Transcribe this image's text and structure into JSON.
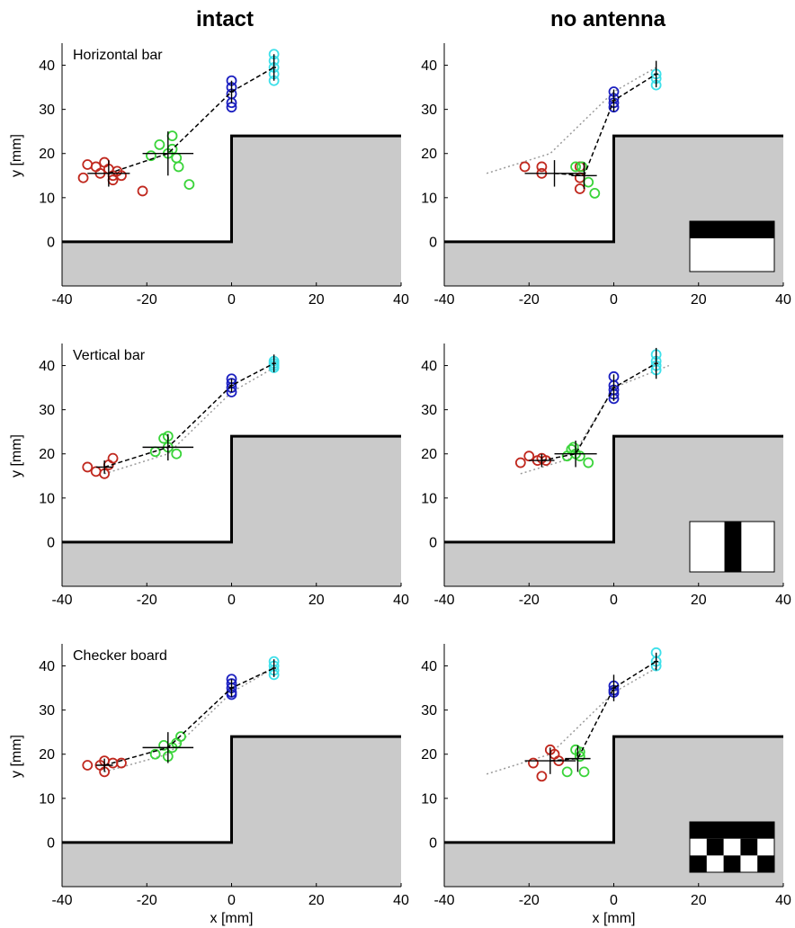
{
  "columns": [
    "intact",
    "no antenna"
  ],
  "colors": {
    "red": "#c0281e",
    "green": "#3ad43a",
    "blue": "#1c20c0",
    "cyan": "#3ee0ea",
    "obstacle": "#cacaca",
    "dashed_mean": "#000000",
    "dotted_ref": "#9a9a9a"
  },
  "chart_data": [
    {
      "type": "scatter",
      "panel": "horizontal-intact",
      "title": "Horizontal bar",
      "xlabel": "",
      "ylabel": "y [mm]",
      "xlim": [
        -40,
        40
      ],
      "ylim": [
        -10,
        45
      ],
      "xticks": [
        "-40",
        "-20",
        "0",
        "20",
        "40"
      ],
      "yticks": [
        "0",
        "10",
        "20",
        "30",
        "40"
      ],
      "obstacle": [
        [
          -40,
          0
        ],
        [
          0,
          0
        ],
        [
          0,
          24
        ],
        [
          40,
          24
        ]
      ],
      "pattern": "",
      "series": [
        {
          "color": "red",
          "points": [
            [
              -35,
              14.5
            ],
            [
              -34,
              17.5
            ],
            [
              -32,
              17
            ],
            [
              -31,
              15.5
            ],
            [
              -30,
              18
            ],
            [
              -29,
              16.5
            ],
            [
              -28,
              15
            ],
            [
              -28,
              14
            ],
            [
              -27,
              16
            ],
            [
              -26,
              15
            ],
            [
              -21,
              11.5
            ]
          ]
        },
        {
          "color": "green",
          "points": [
            [
              -19,
              19.5
            ],
            [
              -17,
              22
            ],
            [
              -15,
              20
            ],
            [
              -14,
              24
            ],
            [
              -14,
              21
            ],
            [
              -13,
              19
            ],
            [
              -12.5,
              17
            ],
            [
              -10,
              13
            ]
          ]
        },
        {
          "color": "blue",
          "points": [
            [
              0,
              36.5
            ],
            [
              0,
              35
            ],
            [
              0,
              33.5
            ],
            [
              0,
              31.5
            ],
            [
              0,
              30.5
            ]
          ]
        },
        {
          "color": "cyan",
          "points": [
            [
              10,
              42.5
            ],
            [
              10,
              41
            ],
            [
              10,
              39.5
            ],
            [
              10,
              38
            ],
            [
              10,
              36.5
            ]
          ]
        }
      ],
      "mean_path": [
        [
          -29,
          15.5
        ],
        [
          -15,
          20
        ],
        [
          0,
          34
        ],
        [
          10,
          39.5
        ]
      ],
      "error_bars": [
        [
          -29,
          15.5,
          5,
          3
        ],
        [
          -15,
          20,
          6,
          5
        ],
        [
          0,
          34,
          0.5,
          2.5
        ],
        [
          10,
          39.5,
          0.5,
          3
        ]
      ],
      "ref_path": []
    },
    {
      "type": "scatter",
      "panel": "horizontal-noantenna",
      "title": "",
      "xlabel": "",
      "ylabel": "",
      "xlim": [
        -40,
        40
      ],
      "ylim": [
        -10,
        45
      ],
      "xticks": [
        "-40",
        "-20",
        "0",
        "20",
        "40"
      ],
      "yticks": [
        "0",
        "10",
        "20",
        "30",
        "40"
      ],
      "obstacle": [
        [
          -40,
          0
        ],
        [
          0,
          0
        ],
        [
          0,
          24
        ],
        [
          40,
          24
        ]
      ],
      "pattern": "horizontal",
      "series": [
        {
          "color": "red",
          "points": [
            [
              -21,
              17
            ],
            [
              -17,
              17
            ],
            [
              -17,
              15.5
            ],
            [
              -8,
              17
            ],
            [
              -8,
              14.5
            ],
            [
              -8,
              12
            ]
          ]
        },
        {
          "color": "green",
          "points": [
            [
              -9,
              17
            ],
            [
              -7.5,
              17
            ],
            [
              -6,
              13.5
            ],
            [
              -4.5,
              11
            ]
          ]
        },
        {
          "color": "blue",
          "points": [
            [
              0,
              34
            ],
            [
              0,
              32.5
            ],
            [
              0,
              31.5
            ],
            [
              0,
              30.5
            ]
          ]
        },
        {
          "color": "cyan",
          "points": [
            [
              10,
              38
            ],
            [
              10,
              37
            ],
            [
              10,
              35.5
            ]
          ]
        }
      ],
      "mean_path": [
        [
          -14,
          15.5
        ],
        [
          -7,
          15
        ],
        [
          0,
          32
        ],
        [
          10,
          38
        ]
      ],
      "error_bars": [
        [
          -14,
          15.5,
          7,
          3
        ],
        [
          -7,
          15,
          3,
          3
        ],
        [
          0,
          32,
          0.5,
          2.5
        ],
        [
          10,
          38,
          0.5,
          3
        ]
      ],
      "ref_path": [
        [
          -30,
          15.5
        ],
        [
          -15,
          20
        ],
        [
          0,
          34
        ],
        [
          10,
          39.5
        ]
      ]
    },
    {
      "type": "scatter",
      "panel": "vertical-intact",
      "title": "Vertical bar",
      "xlabel": "",
      "ylabel": "y [mm]",
      "xlim": [
        -40,
        40
      ],
      "ylim": [
        -10,
        45
      ],
      "xticks": [
        "-40",
        "-20",
        "0",
        "20",
        "40"
      ],
      "yticks": [
        "0",
        "10",
        "20",
        "30",
        "40"
      ],
      "obstacle": [
        [
          -40,
          0
        ],
        [
          0,
          0
        ],
        [
          0,
          24
        ],
        [
          40,
          24
        ]
      ],
      "pattern": "",
      "series": [
        {
          "color": "red",
          "points": [
            [
              -34,
              17
            ],
            [
              -32,
              16
            ],
            [
              -30,
              15.5
            ],
            [
              -29,
              17.5
            ],
            [
              -28,
              19
            ]
          ]
        },
        {
          "color": "green",
          "points": [
            [
              -18,
              20.5
            ],
            [
              -16,
              23.5
            ],
            [
              -15,
              24
            ],
            [
              -15,
              21.5
            ],
            [
              -13,
              20
            ]
          ]
        },
        {
          "color": "blue",
          "points": [
            [
              0,
              37
            ],
            [
              0,
              36
            ],
            [
              0,
              35
            ],
            [
              0,
              34
            ]
          ]
        },
        {
          "color": "cyan",
          "points": [
            [
              10,
              41
            ],
            [
              10,
              40.5
            ],
            [
              10,
              40
            ],
            [
              10,
              39.5
            ]
          ]
        }
      ],
      "mean_path": [
        [
          -30,
          17
        ],
        [
          -15,
          21.5
        ],
        [
          0,
          35.5
        ],
        [
          10,
          40.5
        ]
      ],
      "error_bars": [
        [
          -30,
          17,
          2,
          1.5
        ],
        [
          -15,
          21.5,
          6,
          3
        ],
        [
          0,
          35.5,
          0.5,
          1.5
        ],
        [
          10,
          40.5,
          0.5,
          2
        ]
      ],
      "ref_path": [
        [
          -30,
          15.5
        ],
        [
          -15,
          20
        ],
        [
          0,
          34
        ],
        [
          10,
          39.5
        ]
      ]
    },
    {
      "type": "scatter",
      "panel": "vertical-noantenna",
      "title": "",
      "xlabel": "",
      "ylabel": "",
      "xlim": [
        -40,
        40
      ],
      "ylim": [
        -10,
        45
      ],
      "xticks": [
        "-40",
        "-20",
        "0",
        "20",
        "40"
      ],
      "yticks": [
        "0",
        "10",
        "20",
        "30",
        "40"
      ],
      "obstacle": [
        [
          -40,
          0
        ],
        [
          0,
          0
        ],
        [
          0,
          24
        ],
        [
          40,
          24
        ]
      ],
      "pattern": "vertical",
      "series": [
        {
          "color": "red",
          "points": [
            [
              -22,
              18
            ],
            [
              -20,
              19.5
            ],
            [
              -18,
              18.5
            ],
            [
              -17,
              19
            ],
            [
              -16,
              18.5
            ]
          ]
        },
        {
          "color": "green",
          "points": [
            [
              -11,
              19.5
            ],
            [
              -10,
              21
            ],
            [
              -9.5,
              21.5
            ],
            [
              -9,
              20
            ],
            [
              -8,
              19.5
            ],
            [
              -6,
              18
            ]
          ]
        },
        {
          "color": "blue",
          "points": [
            [
              0,
              37.5
            ],
            [
              0,
              35.5
            ],
            [
              0,
              34.5
            ],
            [
              0,
              33.5
            ],
            [
              0,
              32.5
            ]
          ]
        },
        {
          "color": "cyan",
          "points": [
            [
              10,
              42.5
            ],
            [
              10,
              41
            ],
            [
              10,
              40
            ],
            [
              10,
              39
            ]
          ]
        }
      ],
      "mean_path": [
        [
          -17,
          18.5
        ],
        [
          -9,
          20
        ],
        [
          0,
          35
        ],
        [
          10,
          40.5
        ]
      ],
      "error_bars": [
        [
          -17,
          18.5,
          3,
          1.5
        ],
        [
          -9,
          20,
          5,
          3
        ],
        [
          0,
          35,
          0.5,
          3
        ],
        [
          10,
          40.5,
          0.5,
          3.5
        ]
      ],
      "ref_path": [
        [
          -22,
          15.5
        ],
        [
          -10,
          19
        ],
        [
          0,
          35
        ],
        [
          13,
          40
        ]
      ]
    },
    {
      "type": "scatter",
      "panel": "checker-intact",
      "title": "Checker board",
      "xlabel": "x [mm]",
      "ylabel": "y [mm]",
      "xlim": [
        -40,
        40
      ],
      "ylim": [
        -10,
        45
      ],
      "xticks": [
        "-40",
        "-20",
        "0",
        "20",
        "40"
      ],
      "yticks": [
        "0",
        "10",
        "20",
        "30",
        "40"
      ],
      "obstacle": [
        [
          -40,
          0
        ],
        [
          0,
          0
        ],
        [
          0,
          24
        ],
        [
          40,
          24
        ]
      ],
      "pattern": "",
      "series": [
        {
          "color": "red",
          "points": [
            [
              -34,
              17.5
            ],
            [
              -31,
              17.5
            ],
            [
              -30,
              18.5
            ],
            [
              -30,
              16
            ],
            [
              -28,
              18
            ],
            [
              -26,
              18
            ]
          ]
        },
        {
          "color": "green",
          "points": [
            [
              -18,
              20
            ],
            [
              -16,
              22
            ],
            [
              -15,
              19.5
            ],
            [
              -14,
              21.5
            ],
            [
              -13,
              22.5
            ],
            [
              -12,
              24
            ]
          ]
        },
        {
          "color": "blue",
          "points": [
            [
              0,
              37
            ],
            [
              0,
              36
            ],
            [
              0,
              35
            ],
            [
              0,
              34
            ],
            [
              0,
              33.5
            ]
          ]
        },
        {
          "color": "cyan",
          "points": [
            [
              10,
              41
            ],
            [
              10,
              40
            ],
            [
              10,
              39
            ],
            [
              10,
              38
            ]
          ]
        }
      ],
      "mean_path": [
        [
          -30,
          17.5
        ],
        [
          -15,
          21.5
        ],
        [
          0,
          35
        ],
        [
          10,
          39.5
        ]
      ],
      "error_bars": [
        [
          -30,
          17.5,
          2,
          1.5
        ],
        [
          -15,
          21.5,
          6,
          3.5
        ],
        [
          0,
          35,
          0.5,
          2
        ],
        [
          10,
          39.5,
          0.5,
          2
        ]
      ],
      "ref_path": [
        [
          -30,
          16
        ],
        [
          -15,
          20
        ],
        [
          0,
          34
        ],
        [
          10,
          39.5
        ]
      ]
    },
    {
      "type": "scatter",
      "panel": "checker-noantenna",
      "title": "",
      "xlabel": "x [mm]",
      "ylabel": "",
      "xlim": [
        -40,
        40
      ],
      "ylim": [
        -10,
        45
      ],
      "xticks": [
        "-40",
        "-20",
        "0",
        "20",
        "40"
      ],
      "yticks": [
        "0",
        "10",
        "20",
        "30",
        "40"
      ],
      "obstacle": [
        [
          -40,
          0
        ],
        [
          0,
          0
        ],
        [
          0,
          24
        ],
        [
          40,
          24
        ]
      ],
      "pattern": "checker",
      "series": [
        {
          "color": "red",
          "points": [
            [
              -19,
              18
            ],
            [
              -17,
              15
            ],
            [
              -15,
              21
            ],
            [
              -14,
              20
            ],
            [
              -13,
              18.5
            ]
          ]
        },
        {
          "color": "green",
          "points": [
            [
              -11,
              16
            ],
            [
              -9,
              21
            ],
            [
              -8,
              20.5
            ],
            [
              -8,
              19.5
            ],
            [
              -7,
              16
            ]
          ]
        },
        {
          "color": "blue",
          "points": [
            [
              0,
              35.5
            ],
            [
              0,
              34.5
            ],
            [
              0,
              34
            ]
          ]
        },
        {
          "color": "cyan",
          "points": [
            [
              10,
              43
            ],
            [
              10,
              41
            ],
            [
              10,
              40
            ]
          ]
        }
      ],
      "mean_path": [
        [
          -15,
          18.5
        ],
        [
          -8.5,
          19
        ],
        [
          0,
          35
        ],
        [
          10,
          41
        ]
      ],
      "error_bars": [
        [
          -15,
          18.5,
          6,
          3
        ],
        [
          -8.5,
          19,
          3,
          3
        ],
        [
          0,
          35,
          0.5,
          3
        ],
        [
          10,
          41,
          0.5,
          2
        ]
      ],
      "ref_path": [
        [
          -30,
          15.5
        ],
        [
          -15,
          20
        ],
        [
          0,
          34
        ],
        [
          10,
          39.5
        ]
      ]
    }
  ]
}
